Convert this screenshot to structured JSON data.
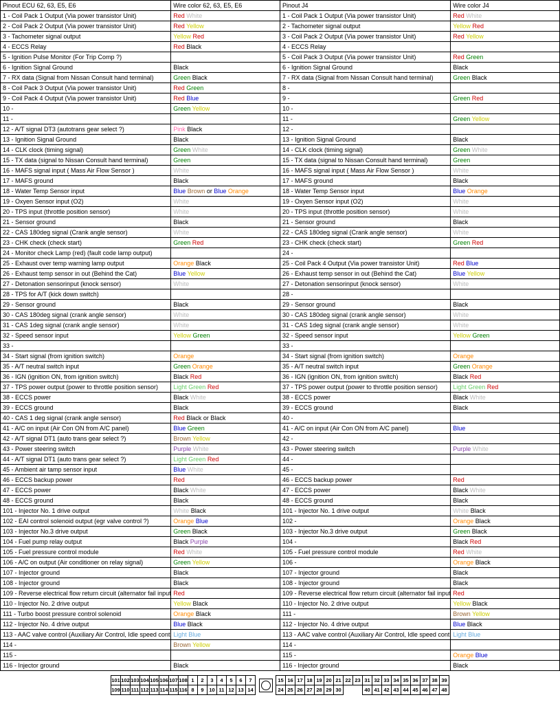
{
  "colors": {
    "Red": "#cc0000",
    "Yellow": "#cccc00",
    "Green": "#008000",
    "Blue": "#0000cc",
    "Black": "#000000",
    "White": "#bbbbbb",
    "Pink": "#ff66aa",
    "Orange": "#ff8800",
    "Brown": "#996633",
    "Purple": "#8844aa",
    "Light Green": "#66cc66",
    "Light Blue": "#66aadd"
  },
  "headers": [
    "Pinout ECU 62, 63, E5, E6",
    "Wire color 62, 63, E5, E6",
    "Pinout J4",
    "Wire color J4"
  ],
  "rows": [
    {
      "n": "1",
      "aDesc": "Coil Pack 1 Output (Via power transistor Unit)",
      "aCol": [
        "Red",
        "White"
      ],
      "bDesc": "Coil Pack 1 Output (Via power transistor Unit)",
      "bCol": [
        "Red",
        "White"
      ]
    },
    {
      "n": "2",
      "aDesc": "Coil Pack 2 Output (Via power transistor Unit)",
      "aCol": [
        "Red",
        "Yellow"
      ],
      "bDesc": "Tachometer signal output",
      "bCol": [
        "Yellow",
        "Red"
      ]
    },
    {
      "n": "3",
      "aDesc": "Tachometer signal output",
      "aCol": [
        "Yellow",
        "Red"
      ],
      "bDesc": "Coil Pack 2 Output (Via power transistor Unit)",
      "bCol": [
        "Red",
        "Yellow"
      ]
    },
    {
      "n": "4",
      "aDesc": "ECCS Relay",
      "aCol": [
        "Red",
        "Black"
      ],
      "bDesc": "ECCS Relay",
      "bCol": []
    },
    {
      "n": "5",
      "aDesc": "Ignition Pulse Monitor (For Trip Comp ?)",
      "aCol": [],
      "bDesc": "Coil Pack 3 Output (Via power transistor Unit)",
      "bCol": [
        "Red",
        "Green"
      ]
    },
    {
      "n": "6",
      "aDesc": "Ignition Signal Ground",
      "aCol": [
        "Black"
      ],
      "bDesc": "Ignition Signal Ground",
      "bCol": [
        "Black"
      ]
    },
    {
      "n": "7",
      "aDesc": "RX data (Signal from Nissan Consult hand terminal)",
      "aCol": [
        "Green",
        "Black"
      ],
      "bDesc": "RX data (Signal from Nissan Consult hand terminal)",
      "bCol": [
        "Green",
        "Black"
      ]
    },
    {
      "n": "8",
      "aDesc": "Coil Pack 3 Output (Via power transistor Unit)",
      "aCol": [
        "Red",
        "Green"
      ],
      "bDesc": "",
      "bCol": []
    },
    {
      "n": "9",
      "aDesc": "Coil Pack 4 Output (Via power transistor Unit)",
      "aCol": [
        "Red",
        "Blue"
      ],
      "bDesc": "",
      "bCol": [
        "Green",
        "Red"
      ]
    },
    {
      "n": "10",
      "aDesc": "",
      "aCol": [
        "Green",
        "Yellow"
      ],
      "bDesc": "",
      "bCol": []
    },
    {
      "n": "11",
      "aDesc": "",
      "aCol": [],
      "bDesc": "",
      "bCol": [
        "Green",
        "Yellow"
      ]
    },
    {
      "n": "12",
      "aDesc": "A/T signal DT3 (autotrans gear select ?)",
      "aCol": [
        "Pink",
        "Black"
      ],
      "bDesc": "",
      "bCol": []
    },
    {
      "n": "13",
      "aDesc": "Ignition Signal Ground",
      "aCol": [
        "Black"
      ],
      "bDesc": "Ignition Signal Ground",
      "bCol": [
        "Black"
      ]
    },
    {
      "n": "14",
      "aDesc": "CLK clock (timing signal)",
      "aCol": [
        "Green",
        "White"
      ],
      "bDesc": "CLK clock (timing signal)",
      "bCol": [
        "Green",
        "White"
      ]
    },
    {
      "n": "15",
      "aDesc": "TX data (signal to Nissan Consult hand terminal)",
      "aCol": [
        "Green"
      ],
      "bDesc": "TX data (signal to Nissan Consult hand terminal)",
      "bCol": [
        "Green"
      ]
    },
    {
      "n": "16",
      "aDesc": "MAFS signal input ( Mass Air Flow Sensor )",
      "aCol": [
        "White"
      ],
      "bDesc": "MAFS signal input ( Mass Air Flow Sensor )",
      "bCol": [
        "White"
      ]
    },
    {
      "n": "17",
      "aDesc": "MAFS ground",
      "aCol": [
        "Black"
      ],
      "bDesc": "MAFS ground",
      "bCol": [
        "Black"
      ]
    },
    {
      "n": "18",
      "aDesc": "Water Temp Sensor input",
      "aCol": [
        "Blue",
        "Brown"
      ],
      "aExtra": " or ",
      "aCol2": [
        "Blue",
        "Orange"
      ],
      "bDesc": "Water Temp Sensor input",
      "bCol": [
        "Blue",
        "Orange"
      ]
    },
    {
      "n": "19",
      "aDesc": "Oxyen Sensor input (O2)",
      "aCol": [
        "White"
      ],
      "bDesc": "Oxyen Sensor input (O2)",
      "bCol": [
        "White"
      ]
    },
    {
      "n": "20",
      "aDesc": "TPS input (throttle position sensor)",
      "aCol": [
        "White"
      ],
      "bDesc": "TPS input (throttle position sensor)",
      "bCol": [
        "White"
      ]
    },
    {
      "n": "21",
      "aDesc": "Sensor ground",
      "aCol": [
        "Black"
      ],
      "bDesc": "Sensor ground",
      "bCol": [
        "Black"
      ]
    },
    {
      "n": "22",
      "aDesc": "CAS 180deg signal (Crank angle sensor)",
      "aCol": [
        "White"
      ],
      "bDesc": "CAS 180deg signal (Crank angle sensor)",
      "bCol": [
        "White"
      ]
    },
    {
      "n": "23",
      "aDesc": "CHK check (check start)",
      "aCol": [
        "Green",
        "Red"
      ],
      "bDesc": "CHK check (check start)",
      "bCol": [
        "Green",
        "Red"
      ]
    },
    {
      "n": "24",
      "aDesc": "Monitor check Lamp (red) (fault code lamp output)",
      "aCol": [],
      "bDesc": "",
      "bCol": []
    },
    {
      "n": "25",
      "aDesc": "Exhaust over temp warning lamp output",
      "aCol": [
        "Orange",
        "Black"
      ],
      "bDesc": "Coil Pack 4 Output (Via power transistor Unit)",
      "bCol": [
        "Red",
        "Blue"
      ]
    },
    {
      "n": "26",
      "aDesc": "Exhaust temp sensor in out (Behind the Cat)",
      "aCol": [
        "Blue",
        "Yellow"
      ],
      "bDesc": "Exhaust temp sensor in out (Behind the Cat)",
      "bCol": [
        "Blue",
        "Yellow"
      ]
    },
    {
      "n": "27",
      "aDesc": "Detonation sensorinput (knock sensor)",
      "aCol": [
        "White"
      ],
      "bDesc": "Detonation sensorinput (knock sensor)",
      "bCol": [
        "White"
      ]
    },
    {
      "n": "28",
      "aDesc": "TPS for A/T (kick down switch)",
      "aCol": [],
      "bDesc": "",
      "bCol": []
    },
    {
      "n": "29",
      "aDesc": "Sensor ground",
      "aCol": [
        "Black"
      ],
      "bDesc": "Sensor ground",
      "bCol": [
        "Black"
      ]
    },
    {
      "n": "30",
      "aDesc": "CAS 180deg signal (crank angle sensor)",
      "aCol": [
        "White"
      ],
      "bDesc": "CAS 180deg signal (crank angle sensor)",
      "bCol": [
        "White"
      ]
    },
    {
      "n": "31",
      "aDesc": "CAS 1deg signal (crank angle sensor)",
      "aCol": [
        "White"
      ],
      "bDesc": "CAS 1deg signal (crank angle sensor)",
      "bCol": [
        "White"
      ]
    },
    {
      "n": "32",
      "aDesc": "Speed sensor input",
      "aCol": [
        "Yellow",
        "Green"
      ],
      "bDesc": "Speed sensor input",
      "bCol": [
        "Yellow",
        "Green"
      ]
    },
    {
      "n": "33",
      "aDesc": "",
      "aCol": [],
      "bDesc": "",
      "bCol": []
    },
    {
      "n": "34",
      "aDesc": "Start signal (from ignition switch)",
      "aCol": [
        "Orange"
      ],
      "bDesc": "Start signal (from ignition switch)",
      "bCol": [
        "Orange"
      ]
    },
    {
      "n": "35",
      "aDesc": "A/T neutral switch input",
      "aCol": [
        "Green",
        "Orange"
      ],
      "bDesc": "A/T neutral switch input",
      "bCol": [
        "Green",
        "Orange"
      ]
    },
    {
      "n": "36",
      "aDesc": "IGN (ignition ON, from ignition switch)",
      "aCol": [
        "Black",
        "Red"
      ],
      "bDesc": "IGN (ignition ON, from ignition switch)",
      "bCol": [
        "Black",
        "Red"
      ]
    },
    {
      "n": "37",
      "aDesc": "TPS power output (power to throttle position sensor)",
      "aCol": [
        "Light Green",
        "Red"
      ],
      "bDesc": "TPS power output (power to throttle position sensor)",
      "bCol": [
        "Light Green",
        "Red"
      ]
    },
    {
      "n": "38",
      "aDesc": "ECCS power",
      "aCol": [
        "Black",
        "White"
      ],
      "bDesc": "ECCS power",
      "bCol": [
        "Black",
        "White"
      ]
    },
    {
      "n": "39",
      "aDesc": "ECCS ground",
      "aCol": [
        "Black"
      ],
      "bDesc": "ECCS ground",
      "bCol": [
        "Black"
      ]
    },
    {
      "n": "40",
      "aDesc": "CAS 1 deg signal (crank angle sensor)",
      "aCol": [
        "Red",
        "Black"
      ],
      "aExtra": " or ",
      "aCol2": [
        "Black"
      ],
      "bDesc": "",
      "bCol": []
    },
    {
      "n": "41",
      "aDesc": "A/C on input (Air Con ON from A/C panel)",
      "aCol": [
        "Blue",
        "Green"
      ],
      "bDesc": "A/C on input (Air Con ON from A/C panel)",
      "bCol": [
        "Blue"
      ]
    },
    {
      "n": "42",
      "aDesc": "A/T signal DT1 (auto trans gear select ?)",
      "aCol": [
        "Brown",
        "Yellow"
      ],
      "bDesc": "",
      "bCol": []
    },
    {
      "n": "43",
      "aDesc": "Power steering switch",
      "aCol": [
        "Purple",
        "White"
      ],
      "bDesc": "Power steering switch",
      "bCol": [
        "Purple",
        "White"
      ]
    },
    {
      "n": "44",
      "aDesc": "A/T signal DT1 (auto trans gear select ?)",
      "aCol": [
        "Light Green",
        "Red"
      ],
      "bDesc": "",
      "bCol": []
    },
    {
      "n": "45",
      "aDesc": "Ambient air tamp sensor input",
      "aCol": [
        "Blue",
        "White"
      ],
      "bDesc": "",
      "bCol": []
    },
    {
      "n": "46",
      "aDesc": "ECCS backup power",
      "aCol": [
        "Red"
      ],
      "bDesc": "ECCS backup power",
      "bCol": [
        "Red"
      ]
    },
    {
      "n": "47",
      "aDesc": "ECCS power",
      "aCol": [
        "Black",
        "White"
      ],
      "bDesc": "ECCS power",
      "bCol": [
        "Black",
        "White"
      ]
    },
    {
      "n": "48",
      "aDesc": "ECCS ground",
      "aCol": [
        "Black"
      ],
      "bDesc": "ECCS ground",
      "bCol": [
        "Black"
      ]
    },
    {
      "n": "101",
      "aDesc": "Injector No. 1 drive output",
      "aCol": [
        "White",
        "Black"
      ],
      "bDesc": "Injector No. 1 drive output",
      "bCol": [
        "White",
        "Black"
      ]
    },
    {
      "n": "102",
      "aDesc": "EAI control solenoid output (egr valve control ?)",
      "aCol": [
        "Orange",
        "Blue"
      ],
      "bDesc": "",
      "bCol": [
        "Orange",
        "Black"
      ]
    },
    {
      "n": "103",
      "aDesc": "Injector No.3 drive output",
      "aCol": [
        "Green",
        "Black"
      ],
      "bDesc": "Injector No.3 drive output",
      "bCol": [
        "Green",
        "Black"
      ]
    },
    {
      "n": "104",
      "aDesc": "Fuel pump relay output",
      "aCol": [
        "Black",
        "Purple"
      ],
      "bDesc": "",
      "bCol": [
        "Black",
        "Red"
      ]
    },
    {
      "n": "105",
      "aDesc": "Fuel pressure control module",
      "aCol": [
        "Red",
        "White"
      ],
      "bDesc": "Fuel pressure control module",
      "bCol": [
        "Red",
        "White"
      ]
    },
    {
      "n": "106",
      "aDesc": "A/C on output (Air conditioner on relay signal)",
      "aCol": [
        "Green",
        "Yellow"
      ],
      "bDesc": "",
      "bCol": [
        "Orange",
        "Black"
      ]
    },
    {
      "n": "107",
      "aDesc": "Injector ground",
      "aCol": [
        "Black"
      ],
      "bDesc": "Injector ground",
      "bCol": [
        "Black"
      ]
    },
    {
      "n": "108",
      "aDesc": "Injector ground",
      "aCol": [
        "Black"
      ],
      "bDesc": "Injector ground",
      "bCol": [
        "Black"
      ]
    },
    {
      "n": "109",
      "aDesc": "Reverse electrical flow return circuit (alternator fail input)",
      "aCol": [
        "Red"
      ],
      "bDesc": "Reverse electrical flow return circuit (alternator fail input)",
      "bCol": [
        "Red"
      ]
    },
    {
      "n": "110",
      "aDesc": "Injector No. 2 drive output",
      "aCol": [
        "Yellow",
        "Black"
      ],
      "bDesc": "Injector No. 2 drive output",
      "bCol": [
        "Yellow",
        "Black"
      ]
    },
    {
      "n": "111",
      "aDesc": "Turbo boost pressure control solenoid",
      "aCol": [
        "Orange",
        "Black"
      ],
      "bDesc": "",
      "bCol": [
        "Brown",
        "Yellow"
      ]
    },
    {
      "n": "112",
      "aDesc": "Injector No. 4 drive output",
      "aCol": [
        "Blue",
        "Black"
      ],
      "bDesc": "Injector No. 4 drive output",
      "bCol": [
        "Blue",
        "Black"
      ]
    },
    {
      "n": "113",
      "aDesc": "AAC valve control (Auxiliary Air Control, Idle speed control)",
      "aCol": [
        "Light Blue"
      ],
      "bDesc": "AAC valve control (Auxiliary Air Control, Idle speed control)",
      "bCol": [
        "Light Blue"
      ]
    },
    {
      "n": "114",
      "aDesc": "",
      "aCol": [
        "Brown",
        "Yellow"
      ],
      "bDesc": "",
      "bCol": []
    },
    {
      "n": "115",
      "aDesc": "",
      "aCol": [],
      "bDesc": "",
      "bCol": [
        "Orange",
        "Blue"
      ]
    },
    {
      "n": "116",
      "aDesc": "Injector ground",
      "aCol": [
        "Black"
      ],
      "bDesc": "Injector ground",
      "bCol": [
        "Black"
      ]
    }
  ],
  "connector": {
    "top": [
      "101",
      "102",
      "103",
      "104",
      "105",
      "106",
      "107",
      "108",
      "1",
      "2",
      "3",
      "4",
      "5",
      "6",
      "7",
      "CIRC",
      "15",
      "16",
      "17",
      "18",
      "19",
      "20",
      "21",
      "22",
      "23",
      "31",
      "32",
      "33",
      "34",
      "35",
      "36",
      "37",
      "38",
      "39"
    ],
    "bottom": [
      "109",
      "110",
      "111",
      "112",
      "113",
      "114",
      "115",
      "116",
      "8",
      "9",
      "10",
      "11",
      "12",
      "13",
      "14",
      "CIRC",
      "24",
      "25",
      "26",
      "27",
      "28",
      "29",
      "30",
      "",
      "",
      "40",
      "41",
      "42",
      "43",
      "44",
      "45",
      "46",
      "47",
      "48"
    ]
  }
}
